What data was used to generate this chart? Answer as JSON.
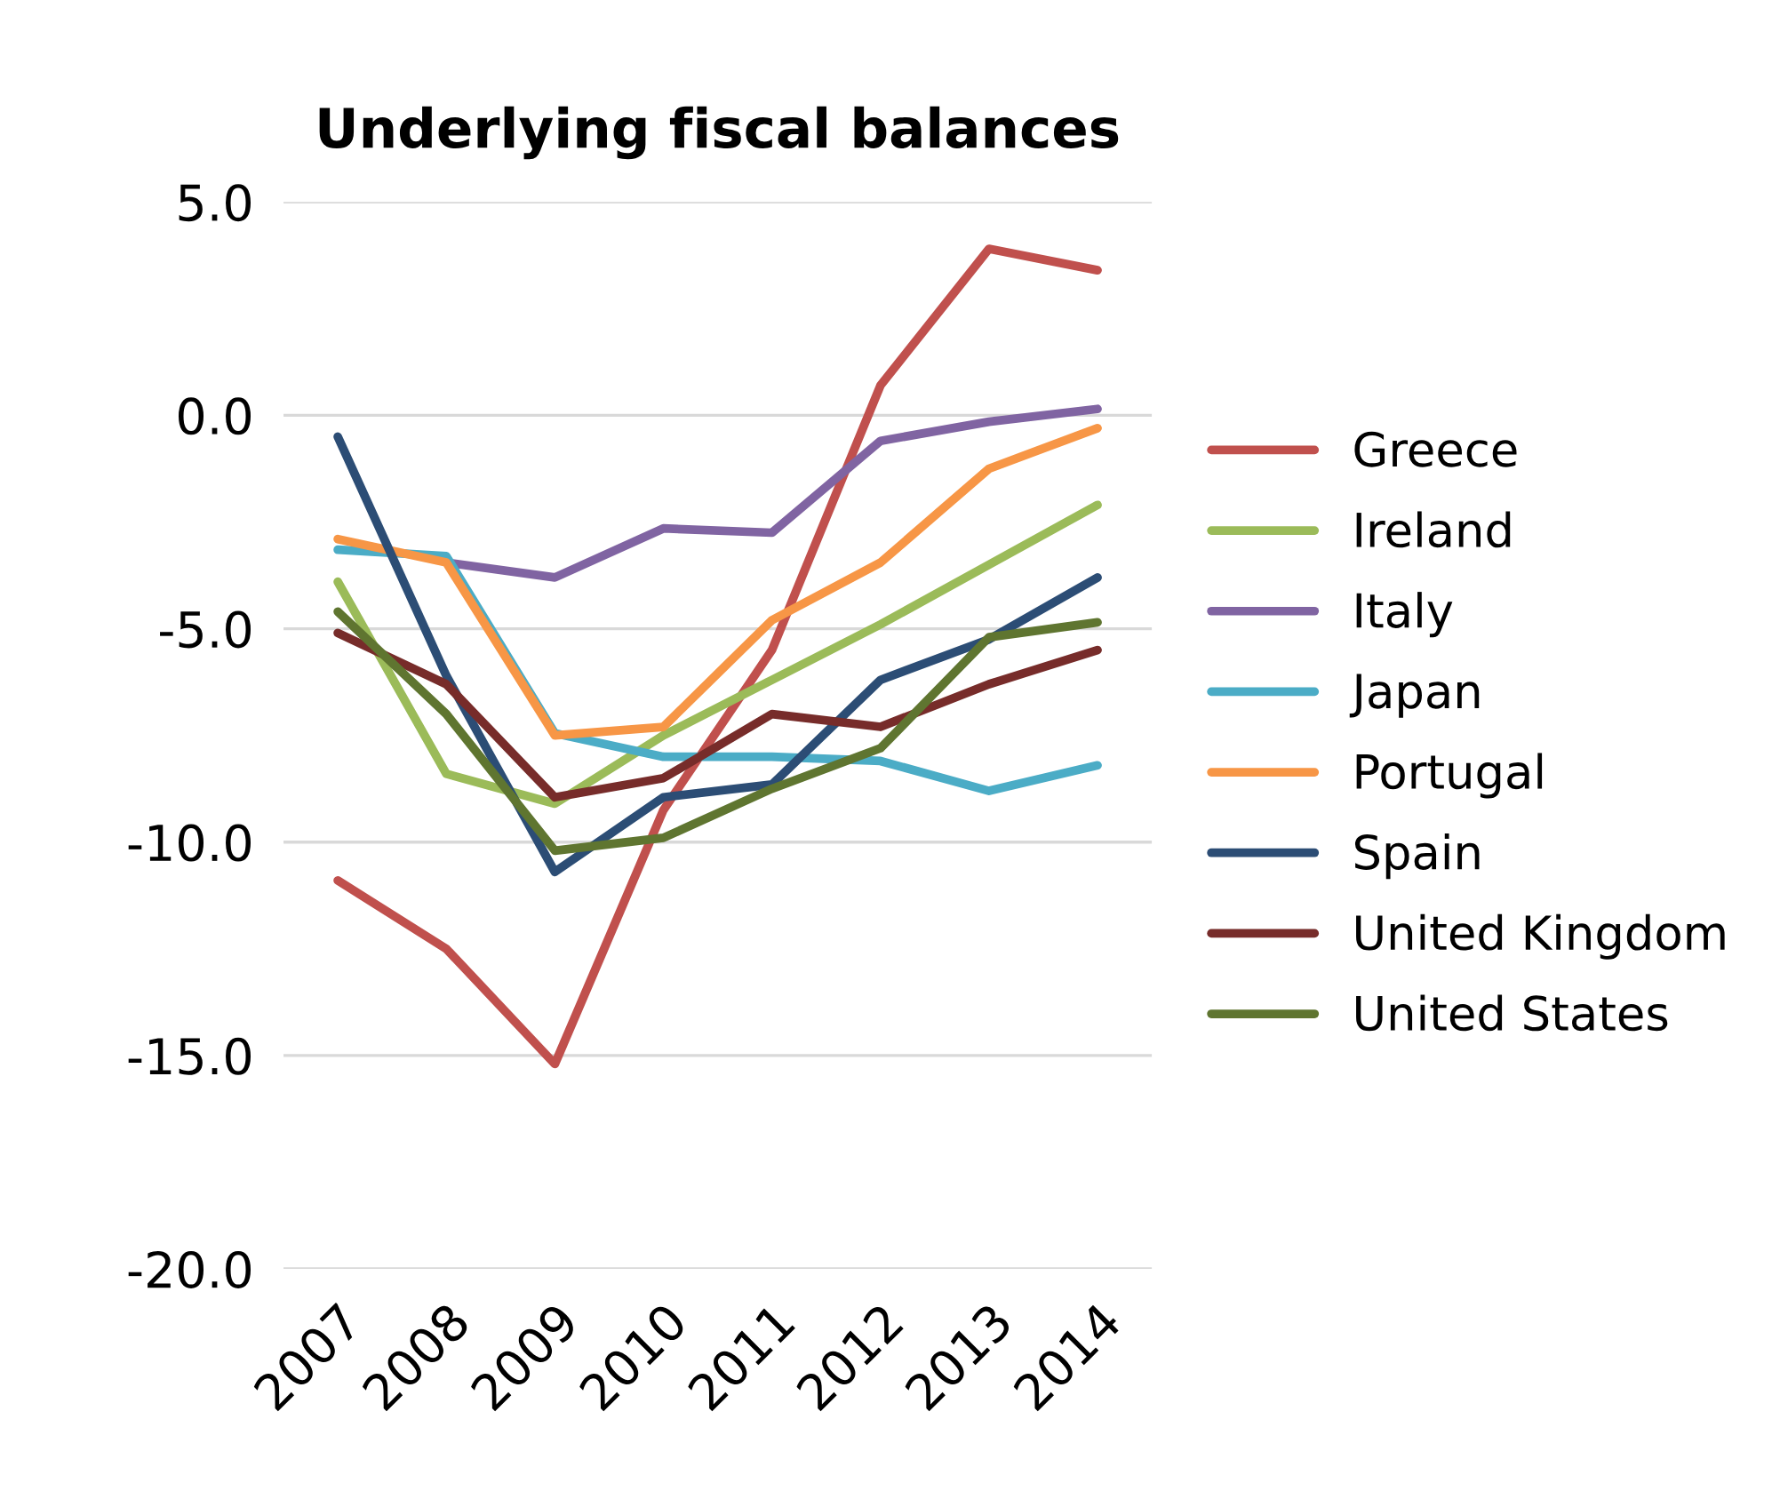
{
  "chart_data": {
    "type": "line",
    "title": "Underlying fiscal balances",
    "categories": [
      "2007",
      "2008",
      "2009",
      "2010",
      "2011",
      "2012",
      "2013",
      "2014"
    ],
    "ylim": [
      -20,
      5
    ],
    "yticks": [
      {
        "value": -20,
        "label": "-20.0"
      },
      {
        "value": -15,
        "label": "-15.0"
      },
      {
        "value": -10,
        "label": "-10.0"
      },
      {
        "value": -5,
        "label": "-5.0"
      },
      {
        "value": 0,
        "label": "0.0"
      },
      {
        "value": 5,
        "label": "5.0"
      }
    ],
    "grid": "y",
    "legend": "right",
    "marker": "none",
    "line_style": "solid",
    "series": [
      {
        "name": "Greece",
        "color": "#c0504d",
        "values": [
          -10.9,
          -12.5,
          -15.2,
          -9.25,
          -5.5,
          0.7,
          3.9,
          3.4
        ]
      },
      {
        "name": "Ireland",
        "color": "#9bbb59",
        "values": [
          -3.9,
          -8.4,
          -9.1,
          -7.5,
          -6.2,
          -4.9,
          -3.5,
          -2.1
        ]
      },
      {
        "name": "Italy",
        "color": "#8064a2",
        "values": [
          null,
          -3.45,
          -3.8,
          -2.65,
          -2.75,
          -0.6,
          -0.15,
          0.15
        ]
      },
      {
        "name": "Japan",
        "color": "#4bacc6",
        "values": [
          -3.15,
          -3.3,
          -7.45,
          -8.0,
          -8.0,
          -8.1,
          -8.8,
          -8.2
        ]
      },
      {
        "name": "Portugal",
        "color": "#f79646",
        "values": [
          -2.9,
          -3.45,
          -7.5,
          -7.3,
          -4.8,
          -3.45,
          -1.25,
          -0.3
        ]
      },
      {
        "name": "Spain",
        "color": "#2c4d75",
        "values": [
          -0.5,
          -6.1,
          -10.7,
          -8.95,
          -8.65,
          -6.2,
          -5.25,
          -3.8
        ]
      },
      {
        "name": "United Kingdom",
        "color": "#772c2a",
        "values": [
          -5.1,
          -6.3,
          -8.95,
          -8.5,
          -7.0,
          -7.3,
          -6.3,
          -5.5
        ]
      },
      {
        "name": "United States",
        "color": "#5f7530",
        "values": [
          -4.6,
          -7.0,
          -10.2,
          -9.9,
          -8.75,
          -7.8,
          -5.2,
          -4.85
        ]
      }
    ]
  }
}
